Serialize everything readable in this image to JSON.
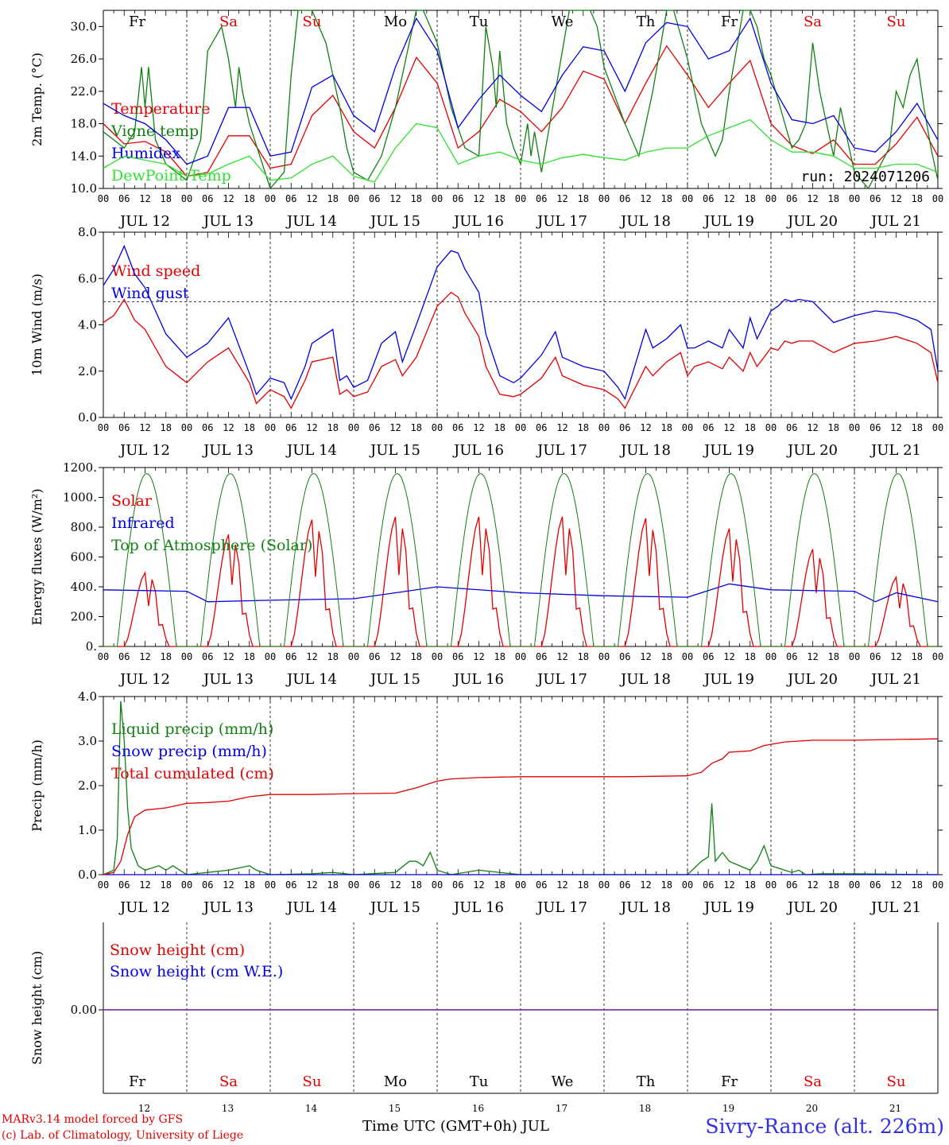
{
  "colors": {
    "red": "#e00000",
    "blue": "#0000e0",
    "green": "#108010",
    "lightgreen": "#30e030",
    "purple": "#8040a0"
  },
  "days": [
    "Fr",
    "Sa",
    "Su",
    "Mo",
    "Tu",
    "We",
    "Th",
    "Fr",
    "Sa",
    "Su"
  ],
  "weekend_days": [
    1,
    2,
    8,
    9
  ],
  "date_labels": [
    "JUL 12",
    "JUL 13",
    "JUL 14",
    "JUL 15",
    "JUL 16",
    "JUL 17",
    "JUL 18",
    "JUL 19",
    "JUL 20",
    "JUL 21"
  ],
  "bottom_day_numbers": [
    "12",
    "13",
    "14",
    "15",
    "16",
    "17",
    "18",
    "19",
    "20",
    "21"
  ],
  "hour_ticks": [
    "00",
    "06",
    "12",
    "18"
  ],
  "hour_end": "00",
  "run_label": "run: 2024071206",
  "credit_line1": "MARv3.14 model forced by GFS",
  "credit_line2": "(c) Lab. of Climatology, University of Liege",
  "x_title": "Time UTC (GMT+0h) JUL",
  "station": "Sivry-Rance (alt. 226m)",
  "chart_data": [
    {
      "type": "line",
      "ylabel": "2m Temp. (°C)",
      "ylim": [
        10,
        32
      ],
      "yticks": [
        "10.0",
        "14.0",
        "18.0",
        "22.0",
        "26.0",
        "30.0"
      ],
      "x_unit": "hours since 2024-07-12 00 UTC",
      "series": [
        {
          "name": "Temperature",
          "color": "red",
          "x": [
            0,
            6,
            12,
            18,
            24,
            30,
            36,
            42,
            48,
            54,
            60,
            66,
            72,
            78,
            84,
            90,
            96,
            102,
            108,
            114,
            120,
            126,
            132,
            138,
            144,
            150,
            156,
            162,
            168,
            174,
            180,
            186,
            192,
            198,
            204,
            210,
            216,
            222,
            228,
            234,
            240
          ],
          "y": [
            18,
            15.5,
            15.8,
            14.5,
            11.5,
            12,
            16.5,
            16.5,
            12.5,
            13,
            19,
            21.5,
            17,
            15,
            20,
            26.2,
            23,
            15,
            17,
            21,
            19.5,
            17,
            20,
            24.5,
            23.5,
            18,
            23,
            27.6,
            24,
            20,
            23,
            25.8,
            18,
            15.3,
            14.3,
            16,
            13,
            13,
            15.5,
            18.8,
            14
          ]
        },
        {
          "name": "Vigne temp",
          "color": "green",
          "x": [
            0,
            6,
            9,
            11,
            12,
            13,
            15,
            18,
            24,
            28,
            30,
            34,
            36,
            38,
            39,
            40,
            42,
            45,
            48,
            52,
            54,
            56,
            58,
            60,
            62,
            64,
            66,
            68,
            70,
            72,
            76,
            80,
            84,
            88,
            90,
            92,
            96,
            100,
            104,
            108,
            110,
            112,
            113,
            114,
            116,
            118,
            120,
            122,
            123,
            124,
            126,
            130,
            134,
            138,
            140,
            142,
            144,
            150,
            154,
            158,
            162,
            164,
            168,
            172,
            176,
            178,
            180,
            184,
            186,
            188,
            190,
            192,
            196,
            198,
            200,
            202,
            204,
            206,
            208,
            210,
            212,
            216,
            220,
            226,
            228,
            230,
            232,
            234,
            236,
            238,
            240
          ],
          "y": [
            17,
            15,
            17,
            25,
            20,
            25,
            16,
            13,
            11,
            16,
            27,
            30,
            26,
            20,
            25,
            22,
            18,
            14,
            10,
            12,
            24,
            33,
            32,
            32,
            30,
            28,
            24,
            20,
            15,
            12,
            11,
            14,
            20,
            28,
            33,
            33,
            28,
            20,
            15,
            14,
            30,
            25,
            20,
            27,
            18,
            15,
            13,
            18,
            14,
            17,
            12,
            22,
            33,
            34,
            33,
            30,
            25,
            18,
            14,
            22,
            33,
            33,
            26,
            18,
            14,
            16,
            22,
            33,
            33,
            30,
            26,
            24,
            18,
            15,
            16,
            18,
            28,
            22,
            18,
            14,
            20,
            12,
            10,
            15,
            22,
            20,
            24,
            26,
            20,
            15,
            11
          ]
        },
        {
          "name": "Humidex",
          "color": "blue",
          "x": [
            0,
            6,
            12,
            18,
            24,
            30,
            36,
            42,
            48,
            54,
            60,
            66,
            72,
            78,
            84,
            90,
            96,
            102,
            108,
            114,
            120,
            126,
            132,
            138,
            144,
            150,
            156,
            162,
            168,
            174,
            180,
            186,
            192,
            198,
            204,
            210,
            216,
            222,
            228,
            234,
            240
          ],
          "y": [
            20.5,
            19,
            18,
            16,
            13,
            14,
            20,
            20,
            14,
            14.5,
            22.5,
            24,
            19,
            17,
            25,
            31,
            27,
            17.5,
            21,
            24,
            21.5,
            19.5,
            24,
            27.5,
            27,
            22,
            28,
            30.5,
            30,
            26,
            27,
            31,
            23,
            18.5,
            18,
            19,
            15,
            14.5,
            17,
            20.5,
            16
          ]
        },
        {
          "name": "DewPoint Temp",
          "color": "lightgreen",
          "x": [
            0,
            6,
            12,
            18,
            24,
            30,
            36,
            42,
            48,
            54,
            60,
            66,
            72,
            78,
            84,
            90,
            96,
            102,
            108,
            114,
            120,
            126,
            132,
            138,
            144,
            150,
            156,
            162,
            168,
            174,
            180,
            186,
            192,
            198,
            204,
            210,
            216,
            222,
            228,
            234,
            240
          ],
          "y": [
            12.5,
            14,
            13.5,
            13,
            11.5,
            11.8,
            13,
            14,
            11,
            11.3,
            13,
            14,
            11.5,
            10.8,
            15,
            18,
            17.5,
            13,
            14,
            14.5,
            13.5,
            13,
            13.8,
            14.2,
            13.8,
            13.5,
            14.5,
            15,
            15,
            16.5,
            17.5,
            18.5,
            16,
            14.5,
            14.5,
            14,
            12.5,
            12.5,
            13,
            13,
            12
          ]
        }
      ]
    },
    {
      "type": "line",
      "ylabel": "10m Wind (m/s)",
      "ylim": [
        0,
        8
      ],
      "yticks": [
        "0.0",
        "2.0",
        "4.0",
        "6.0",
        "8.0"
      ],
      "reference_line": 5,
      "series": [
        {
          "name": "Wind speed",
          "color": "red",
          "x": [
            0,
            3,
            6,
            9,
            12,
            18,
            24,
            30,
            36,
            42,
            44,
            48,
            52,
            54,
            58,
            60,
            66,
            68,
            70,
            72,
            76,
            80,
            84,
            86,
            90,
            96,
            100,
            102,
            104,
            108,
            110,
            114,
            118,
            120,
            126,
            130,
            132,
            138,
            144,
            148,
            150,
            152,
            154,
            156,
            158,
            162,
            166,
            168,
            170,
            174,
            178,
            180,
            184,
            186,
            188,
            192,
            194,
            196,
            198,
            200,
            204,
            210,
            216,
            222,
            228,
            234,
            238,
            240
          ],
          "y": [
            4.1,
            4.4,
            5.1,
            4.2,
            3.8,
            2.2,
            1.5,
            2.4,
            3.0,
            1.5,
            0.6,
            1.2,
            0.9,
            0.4,
            1.6,
            2.4,
            2.6,
            1.0,
            1.2,
            0.9,
            1.1,
            2.2,
            2.5,
            1.8,
            2.6,
            4.8,
            5.4,
            5.2,
            4.5,
            3.5,
            2.2,
            1.0,
            0.9,
            1.0,
            1.7,
            2.6,
            1.8,
            1.4,
            1.2,
            0.8,
            0.4,
            1.0,
            1.6,
            2.2,
            1.8,
            2.4,
            2.8,
            1.8,
            2.2,
            2.4,
            2.1,
            2.6,
            2.0,
            2.8,
            2.2,
            3.0,
            2.9,
            3.3,
            3.2,
            3.3,
            3.3,
            2.8,
            3.2,
            3.3,
            3.5,
            3.2,
            2.8,
            1.5
          ]
        },
        {
          "name": "Wind gust",
          "color": "blue",
          "x": [
            0,
            3,
            6,
            9,
            12,
            18,
            24,
            30,
            36,
            42,
            44,
            48,
            52,
            54,
            58,
            60,
            66,
            68,
            70,
            72,
            76,
            80,
            84,
            86,
            90,
            96,
            100,
            102,
            104,
            108,
            110,
            114,
            118,
            120,
            126,
            130,
            132,
            138,
            144,
            148,
            150,
            152,
            154,
            156,
            158,
            162,
            166,
            168,
            170,
            174,
            178,
            180,
            184,
            186,
            188,
            192,
            194,
            196,
            198,
            200,
            204,
            210,
            216,
            222,
            228,
            234,
            238,
            240
          ],
          "y": [
            5.7,
            6.4,
            7.4,
            6.2,
            5.6,
            3.6,
            2.6,
            3.2,
            4.3,
            1.9,
            1.0,
            1.7,
            1.5,
            0.8,
            2.2,
            3.2,
            3.8,
            1.6,
            1.8,
            1.3,
            1.6,
            3.2,
            3.7,
            2.4,
            4.0,
            6.5,
            7.2,
            7.1,
            6.4,
            5.4,
            3.6,
            1.8,
            1.5,
            1.7,
            2.7,
            3.7,
            2.6,
            2.2,
            2.0,
            1.3,
            0.8,
            1.8,
            2.8,
            3.8,
            3.0,
            3.4,
            4.0,
            3.0,
            3.0,
            3.3,
            3.0,
            3.8,
            3.0,
            4.3,
            3.4,
            4.6,
            4.8,
            5.1,
            5.0,
            5.1,
            5.0,
            4.1,
            4.4,
            4.6,
            4.5,
            4.2,
            3.8,
            2.0
          ]
        }
      ]
    },
    {
      "type": "line",
      "ylabel": "Energy fluxes (W/m²)",
      "ylim": [
        0,
        1200
      ],
      "yticks": [
        "0.",
        "200.",
        "400.",
        "600.",
        "800.",
        "1000.",
        "1200."
      ],
      "series": [
        {
          "name": "Solar",
          "color": "red",
          "day_peaks": [
            500,
            760,
            860,
            880,
            880,
            880,
            870,
            800,
            660,
            470
          ]
        },
        {
          "name": "Infrared",
          "color": "blue",
          "x": [
            0,
            24,
            30,
            48,
            72,
            96,
            120,
            144,
            168,
            180,
            192,
            216,
            222,
            228,
            240
          ],
          "y": [
            380,
            370,
            300,
            310,
            320,
            400,
            360,
            340,
            330,
            420,
            380,
            370,
            300,
            360,
            300
          ]
        },
        {
          "name": "Top of Atmosphere (Solar)",
          "color": "green",
          "day_peak": 1160
        }
      ]
    },
    {
      "type": "line",
      "ylabel": "Precip (mm/h)",
      "ylim": [
        0,
        4
      ],
      "yticks": [
        "0.0",
        "1.0",
        "2.0",
        "3.0",
        "4.0"
      ],
      "series": [
        {
          "name": "Liquid precip (mm/h)",
          "color": "green",
          "x": [
            0,
            3,
            4,
            5,
            6,
            7,
            8,
            10,
            12,
            16,
            18,
            20,
            22,
            24,
            30,
            36,
            42,
            44,
            48,
            60,
            66,
            72,
            84,
            88,
            90,
            92,
            94,
            96,
            100,
            108,
            120,
            132,
            150,
            168,
            172,
            174,
            175,
            176,
            178,
            180,
            186,
            188,
            190,
            192,
            198,
            200,
            202,
            206,
            216,
            240
          ],
          "y": [
            0,
            0.1,
            0.8,
            3.9,
            3.0,
            1.5,
            0.6,
            0.2,
            0.1,
            0.2,
            0.1,
            0.2,
            0.1,
            0,
            0.05,
            0.1,
            0.2,
            0.1,
            0,
            0.02,
            0.05,
            0,
            0.05,
            0.3,
            0.3,
            0.2,
            0.5,
            0.1,
            0,
            0.1,
            0,
            0,
            0,
            0,
            0.3,
            0.4,
            1.6,
            0.3,
            0.5,
            0.3,
            0.1,
            0.3,
            0.65,
            0.2,
            0.05,
            0.1,
            0,
            0.02,
            0.02,
            0
          ]
        },
        {
          "name": "Snow precip (mm/h)",
          "color": "blue",
          "x": [
            0,
            240
          ],
          "y": [
            0,
            0
          ]
        },
        {
          "name": "Total cumulated (cm)",
          "color": "red",
          "x": [
            0,
            3,
            5,
            7,
            9,
            12,
            18,
            24,
            30,
            36,
            42,
            48,
            60,
            72,
            84,
            90,
            96,
            100,
            108,
            120,
            132,
            150,
            168,
            172,
            175,
            178,
            180,
            186,
            190,
            196,
            204,
            216,
            240
          ],
          "y": [
            0,
            0.05,
            0.3,
            0.9,
            1.3,
            1.45,
            1.5,
            1.6,
            1.62,
            1.65,
            1.75,
            1.8,
            1.8,
            1.82,
            1.83,
            1.95,
            2.1,
            2.15,
            2.18,
            2.2,
            2.2,
            2.2,
            2.22,
            2.3,
            2.5,
            2.6,
            2.75,
            2.78,
            2.9,
            2.98,
            3.02,
            3.02,
            3.05
          ]
        }
      ]
    },
    {
      "type": "line",
      "ylabel": "Snow height (cm)",
      "yticks": [
        "0.00"
      ],
      "series": [
        {
          "name": "Snow height (cm)",
          "color": "red",
          "x": [
            0,
            240
          ],
          "y": [
            0,
            0
          ]
        },
        {
          "name": "Snow height (cm W.E.)",
          "color": "blue",
          "x": [
            0,
            240
          ],
          "y": [
            0,
            0
          ]
        }
      ]
    }
  ]
}
